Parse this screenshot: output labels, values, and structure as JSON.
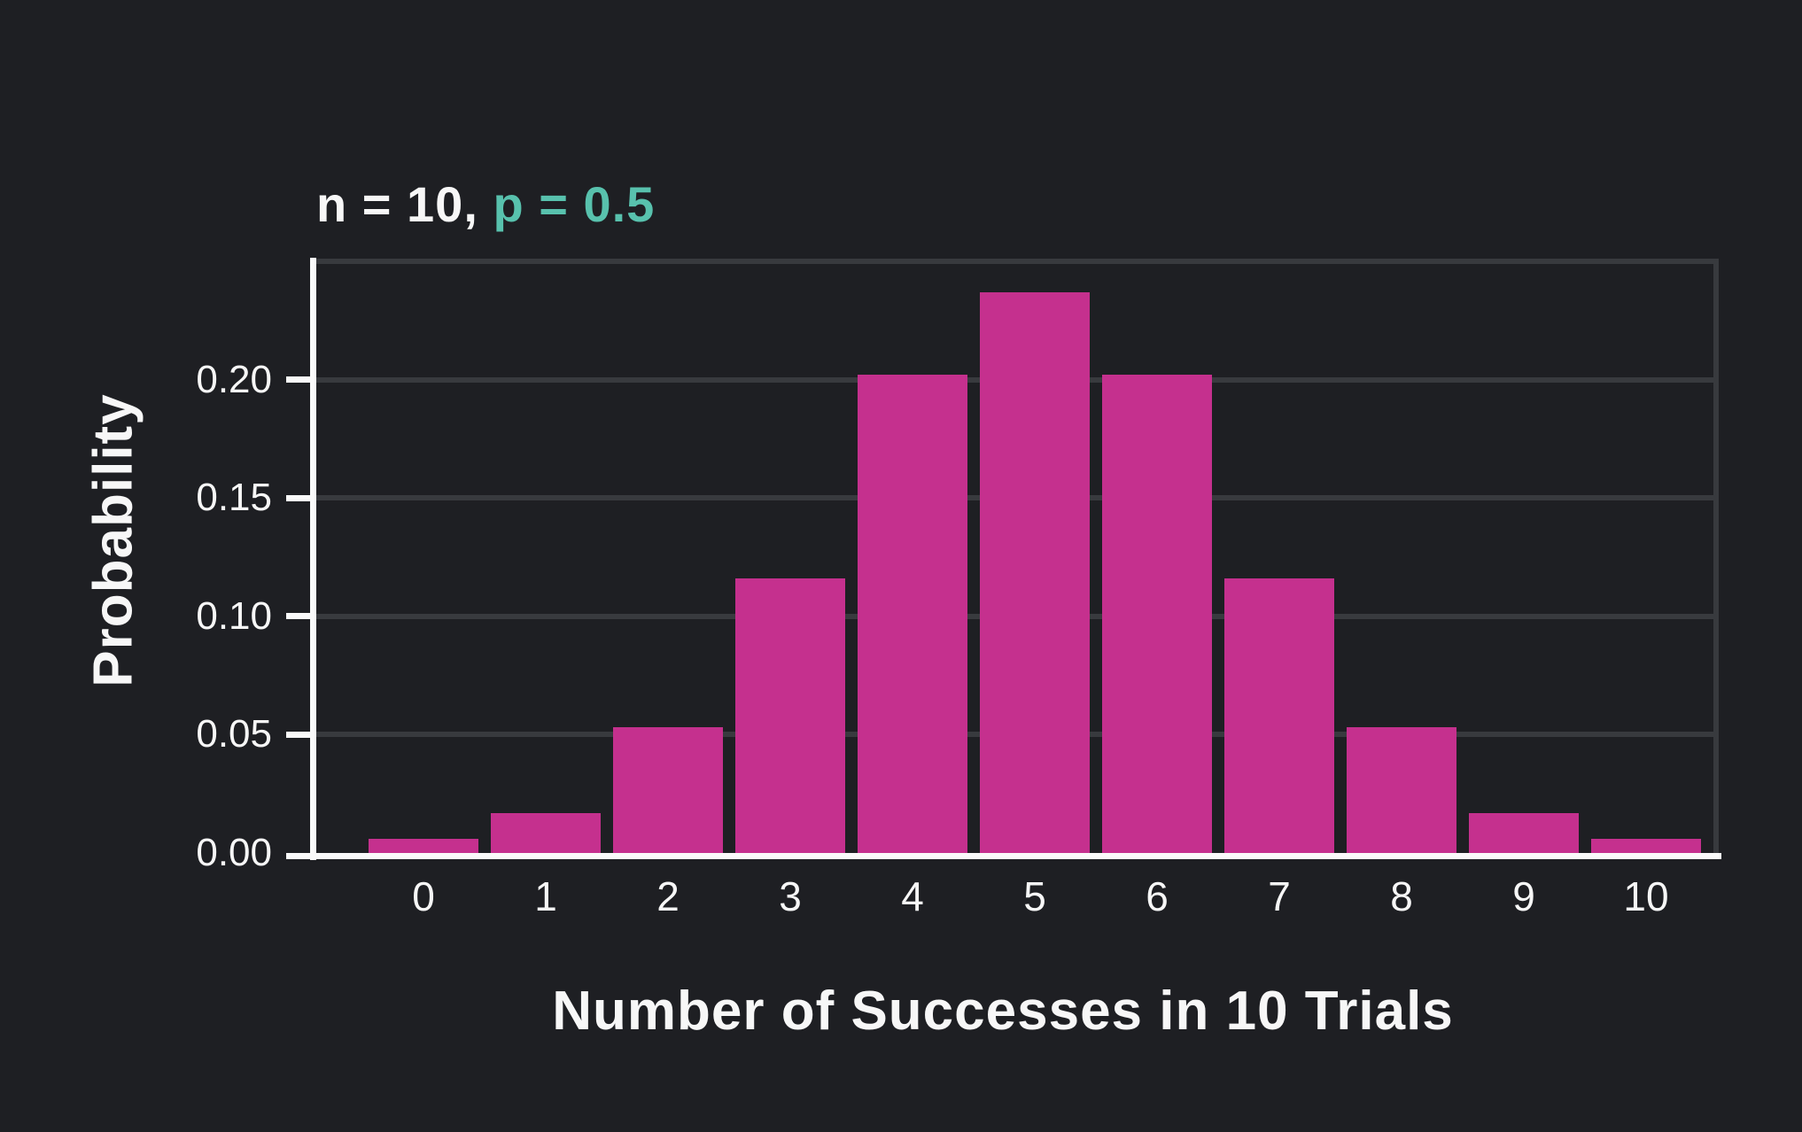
{
  "title": {
    "part1_white": "n = 10, ",
    "part2_teal": "p = 0.5"
  },
  "colors": {
    "background": "#1e1f23",
    "bar": "#c5308e",
    "accent_teal": "#58c1ad",
    "text": "#f7f7f7",
    "gridline": "#383a3e",
    "axis": "#fafafa"
  },
  "chart_data": {
    "type": "bar",
    "title": "n = 10, p = 0.5",
    "xlabel": "Number of Successes in 10 Trials",
    "ylabel": "Probability",
    "categories": [
      "0",
      "1",
      "2",
      "3",
      "4",
      "5",
      "6",
      "7",
      "8",
      "9",
      "10"
    ],
    "values": [
      0.006,
      0.017,
      0.053,
      0.116,
      0.202,
      0.237,
      0.202,
      0.116,
      0.053,
      0.017,
      0.006
    ],
    "ylim": [
      0,
      0.25
    ],
    "ytick_values": [
      0,
      0.05,
      0.1,
      0.15,
      0.2
    ],
    "ytick_labels": [
      "0.00",
      "0.05",
      "0.10",
      "0.15",
      "0.20"
    ],
    "gridline_values": [
      0.05,
      0.1,
      0.15,
      0.2,
      0.25
    ],
    "grid": "horizontal",
    "legend": "none",
    "bar_color": "#c5308e"
  }
}
